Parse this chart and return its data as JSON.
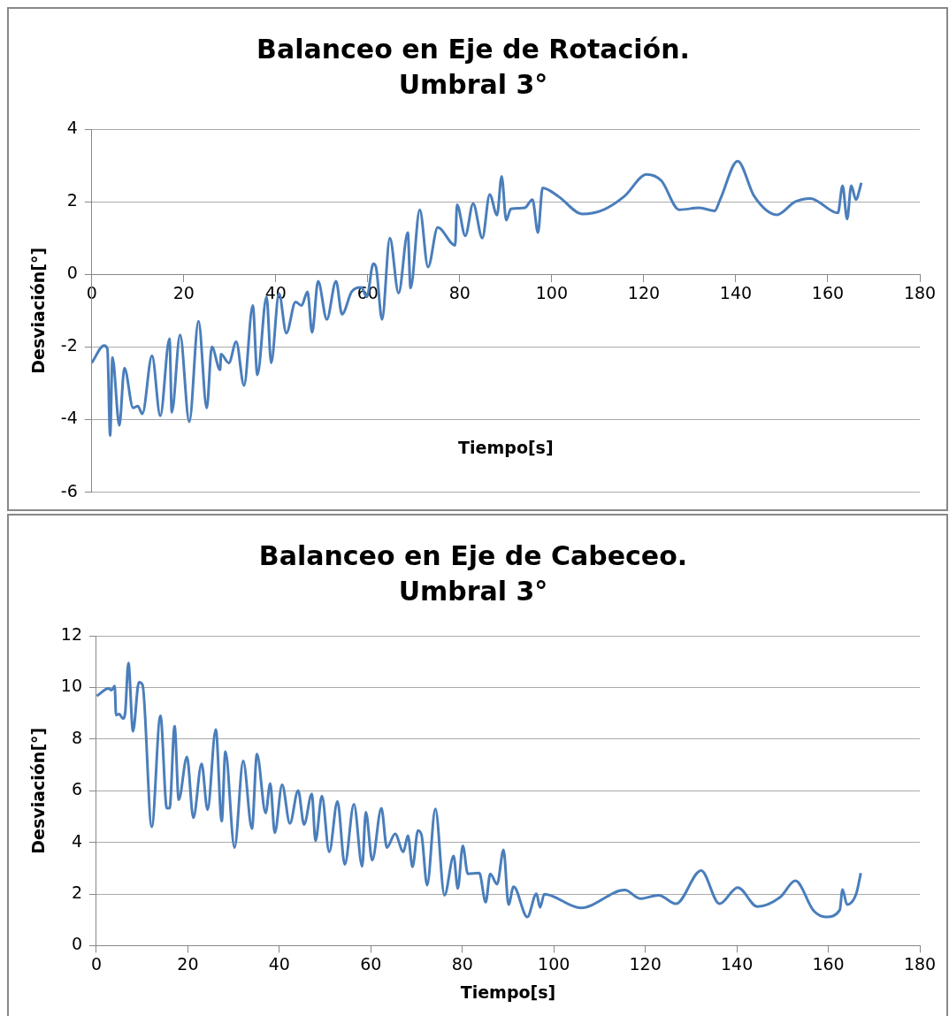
{
  "chart_data": [
    {
      "type": "line",
      "title": "Balanceo en Eje de Rotación.",
      "subtitle": "Umbral 3°",
      "xlabel": "Tiempo[s]",
      "ylabel": "Desviación[°]",
      "xlim": [
        0,
        180
      ],
      "xticks": [
        0,
        20,
        40,
        60,
        80,
        100,
        120,
        140,
        160,
        180
      ],
      "ylim": [
        -6,
        4
      ],
      "yticks": [
        -6,
        -4,
        -2,
        0,
        2,
        4
      ],
      "grid": "y",
      "legend": false,
      "marker": "none",
      "line_style": "solid",
      "x": [
        0,
        2.7,
        3.4,
        4.0,
        4.5,
        6.0,
        7.1,
        9.0,
        10.0,
        11.0,
        13.1,
        14.9,
        16.9,
        17.4,
        19.2,
        21.2,
        23.2,
        25.0,
        26.1,
        27.9,
        28.1,
        29.8,
        31.4,
        33.1,
        35.0,
        36.0,
        38.0,
        39.0,
        40.7,
        42.3,
        44.3,
        45.6,
        46.9,
        47.9,
        49.2,
        51.1,
        53.1,
        54.4,
        56.5,
        58.6,
        59.8,
        61.2,
        61.8,
        63.1,
        64.8,
        66.7,
        68.7,
        69.3,
        71.3,
        73.1,
        75.2,
        79.0,
        79.4,
        81.2,
        82.9,
        84.9,
        86.5,
        88.1,
        89.1,
        90.1,
        91.1,
        94.1,
        95.8,
        97.0,
        98.0,
        101.4,
        106.7,
        111.3,
        115.8,
        120.6,
        123.8,
        127.7,
        132.1,
        135.4,
        136.6,
        140.4,
        144.0,
        148.9,
        152.9,
        156.2,
        162.2,
        163.2,
        164.2,
        165.1,
        166.1,
        167.3
      ],
      "series": [
        {
          "color": "#4a7ebb",
          "values": [
            -2.44,
            -1.96,
            -2.05,
            -4.44,
            -2.29,
            -4.16,
            -2.58,
            -3.68,
            -3.63,
            -3.84,
            -2.24,
            -3.9,
            -1.77,
            -3.8,
            -1.67,
            -4.06,
            -1.29,
            -3.68,
            -2.0,
            -2.63,
            -2.2,
            -2.44,
            -1.86,
            -3.06,
            -0.86,
            -2.77,
            -0.62,
            -2.44,
            -0.53,
            -1.62,
            -0.76,
            -0.86,
            -0.48,
            -1.6,
            -0.19,
            -1.24,
            -0.19,
            -1.1,
            -0.48,
            -0.36,
            -0.62,
            0.29,
            0.19,
            -1.24,
            1.0,
            -0.52,
            1.15,
            -0.38,
            1.78,
            0.2,
            1.29,
            0.8,
            1.92,
            1.06,
            1.95,
            1.0,
            2.2,
            1.63,
            2.7,
            1.49,
            1.8,
            1.83,
            2.06,
            1.15,
            2.38,
            2.15,
            1.66,
            1.78,
            2.15,
            2.75,
            2.58,
            1.78,
            1.83,
            1.75,
            2.06,
            3.12,
            2.15,
            1.64,
            2.0,
            2.09,
            1.69,
            2.44,
            1.52,
            2.44,
            2.06,
            2.52
          ]
        }
      ]
    },
    {
      "type": "line",
      "title": "Balanceo en Eje de Cabeceo.",
      "subtitle": "Umbral 3°",
      "xlabel": "Tiempo[s]",
      "ylabel": "Desviación[°]",
      "xlim": [
        0,
        180
      ],
      "xticks": [
        0,
        20,
        40,
        60,
        80,
        100,
        120,
        140,
        160,
        180
      ],
      "ylim": [
        0,
        12
      ],
      "yticks": [
        0,
        2,
        4,
        6,
        8,
        10,
        12
      ],
      "grid": "y",
      "legend": false,
      "marker": "none",
      "line_style": "solid",
      "x": [
        0.1,
        2.7,
        3.3,
        4.0,
        4.3,
        5.0,
        5.8,
        6.3,
        7.0,
        8.0,
        9.3,
        10.1,
        12.1,
        14.0,
        15.4,
        16.0,
        17.1,
        18.0,
        19.8,
        21.2,
        23.0,
        24.3,
        26.1,
        27.4,
        28.2,
        30.2,
        32.1,
        34.0,
        35.1,
        37.0,
        38.0,
        39.0,
        40.6,
        42.3,
        44.1,
        45.4,
        47.1,
        47.9,
        49.3,
        50.9,
        52.7,
        54.3,
        56.3,
        58.1,
        58.9,
        60.3,
        62.3,
        63.5,
        65.3,
        67.1,
        68.1,
        69.1,
        70.3,
        71.1,
        72.3,
        74.1,
        76.1,
        78.1,
        79.0,
        80.1,
        81.2,
        83.7,
        85.1,
        86.1,
        87.6,
        89.0,
        90.1,
        91.2,
        94.2,
        96.2,
        97.0,
        97.9,
        105.9,
        115.5,
        118.9,
        122.9,
        126.7,
        132.2,
        136.2,
        140.2,
        144.5,
        149.5,
        152.8,
        156.8,
        159.5,
        162.5,
        163.1,
        164.1,
        166.1,
        167.1
      ],
      "series": [
        {
          "color": "#4a7ebb",
          "values": [
            9.67,
            9.96,
            9.89,
            10.06,
            8.93,
            8.97,
            8.79,
            9.03,
            10.95,
            8.3,
            10.2,
            10.09,
            4.6,
            8.9,
            5.32,
            5.32,
            8.5,
            5.65,
            7.31,
            4.95,
            7.04,
            5.26,
            8.37,
            4.82,
            7.51,
            3.8,
            7.15,
            4.53,
            7.42,
            5.13,
            6.28,
            4.37,
            6.23,
            4.73,
            6.01,
            4.69,
            5.88,
            4.06,
            5.79,
            3.63,
            5.59,
            3.14,
            5.48,
            3.07,
            5.17,
            3.31,
            5.32,
            3.8,
            4.33,
            3.63,
            4.26,
            3.05,
            4.46,
            4.26,
            2.34,
            5.3,
            1.95,
            3.47,
            2.21,
            3.87,
            2.78,
            2.81,
            1.68,
            2.78,
            2.38,
            3.71,
            1.59,
            2.28,
            1.11,
            2.01,
            1.48,
            1.99,
            1.46,
            2.15,
            1.82,
            1.95,
            1.62,
            2.91,
            1.62,
            2.25,
            1.51,
            1.88,
            2.51,
            1.35,
            1.11,
            1.38,
            2.17,
            1.59,
            2.01,
            2.81
          ]
        }
      ]
    }
  ]
}
